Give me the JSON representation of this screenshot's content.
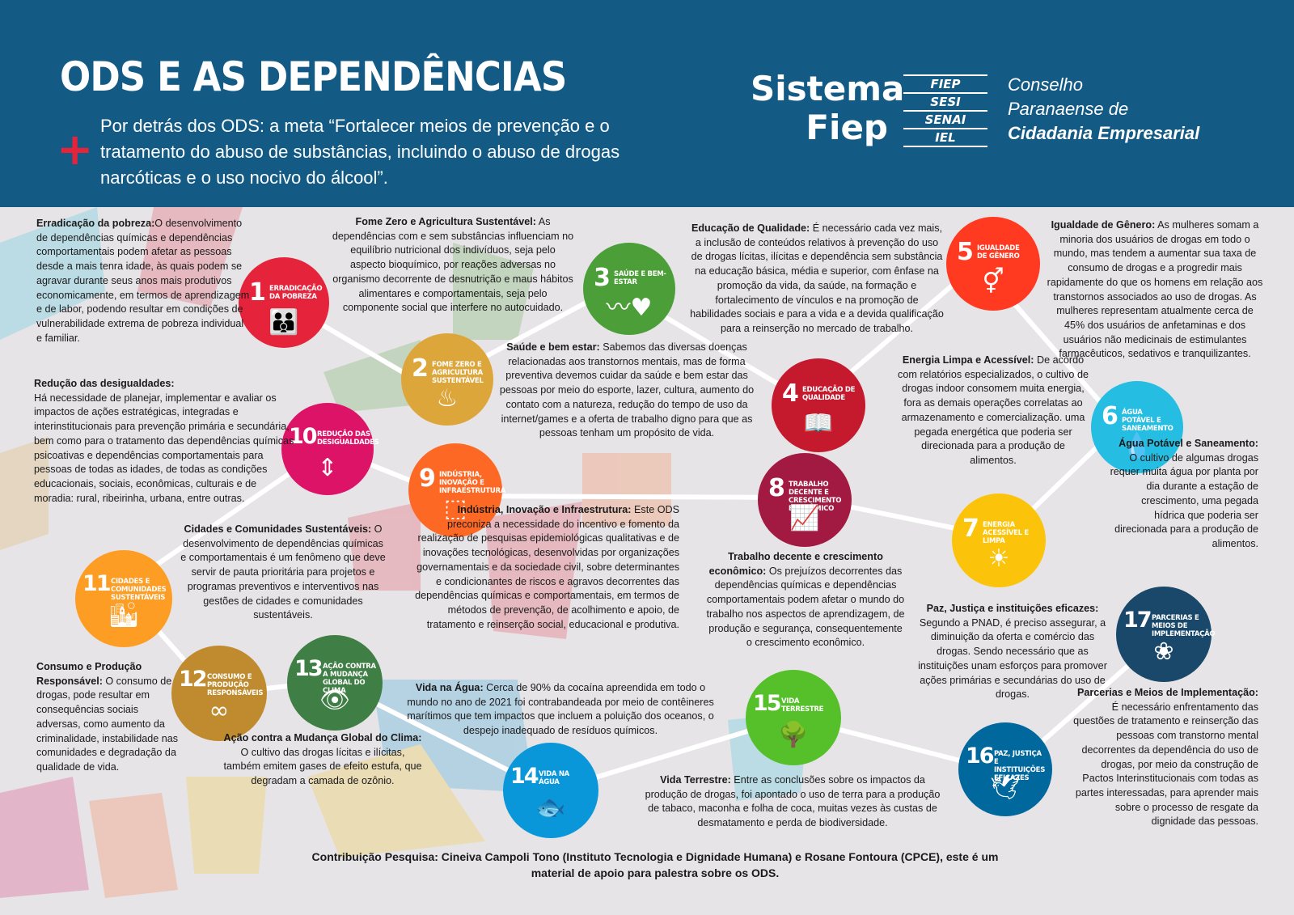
{
  "header": {
    "title": "ODS E AS DEPENDÊNCIAS",
    "subtitle": "Por detrás dos ODS: a meta  “Fortalecer meios de prevenção e o tratamento do abuso de substâncias, incluindo o abuso de drogas narcóticas e o uso nocivo do álcool”.",
    "logo": {
      "sistema": "Sistema",
      "fiep": "Fiep",
      "entities": [
        "FIEP",
        "SESI",
        "SENAI",
        "IEL"
      ],
      "conselho_1": "Conselho",
      "conselho_2": "Paranaense de",
      "conselho_3": "Cidadania Empresarial"
    }
  },
  "goals": [
    {
      "number": "1",
      "label": "Erradicação da pobreza",
      "color": "#e5243b",
      "icon": "people-icon"
    },
    {
      "number": "2",
      "label": "Fome zero e agricultura sustentável",
      "color": "#dda63a",
      "icon": "bowl-icon"
    },
    {
      "number": "3",
      "label": "Saúde e bem-estar",
      "color": "#4c9f38",
      "icon": "heartbeat-icon"
    },
    {
      "number": "4",
      "label": "Educação de qualidade",
      "color": "#c5192d",
      "icon": "book-icon"
    },
    {
      "number": "5",
      "label": "Igualdade de gênero",
      "color": "#ff3a21",
      "icon": "gender-icon"
    },
    {
      "number": "6",
      "label": "Água potável e saneamento",
      "color": "#26bde2",
      "icon": "water-icon"
    },
    {
      "number": "7",
      "label": "Energia acessível e limpa",
      "color": "#fcc30b",
      "icon": "sun-icon"
    },
    {
      "number": "8",
      "label": "Trabalho decente e crescimento econômico",
      "color": "#a21942",
      "icon": "growth-chart-icon"
    },
    {
      "number": "9",
      "label": "Indústria, inovação e infraestrutura",
      "color": "#fd6925",
      "icon": "cubes-icon"
    },
    {
      "number": "10",
      "label": "Redução das desigualdades",
      "color": "#dd1367",
      "icon": "equality-icon"
    },
    {
      "number": "11",
      "label": "Cidades e comunidades sustentáveis",
      "color": "#fd9d24",
      "icon": "city-icon"
    },
    {
      "number": "12",
      "label": "Consumo e produção responsáveis",
      "color": "#bf8b2e",
      "icon": "infinity-icon"
    },
    {
      "number": "13",
      "label": "Ação contra a mudança global do clima",
      "color": "#3f7e44",
      "icon": "eye-globe-icon"
    },
    {
      "number": "14",
      "label": "Vida na água",
      "color": "#0a97d9",
      "icon": "fish-icon"
    },
    {
      "number": "15",
      "label": "Vida terrestre",
      "color": "#56c02b",
      "icon": "tree-icon"
    },
    {
      "number": "16",
      "label": "Paz, justiça e instituições eficazes",
      "color": "#00689d",
      "icon": "dove-icon"
    },
    {
      "number": "17",
      "label": "Parcerias e meios de implementação",
      "color": "#19486a",
      "icon": "rings-icon"
    }
  ],
  "texts": {
    "ods1": {
      "title": "Erradicação da pobreza:",
      "body": "O desenvolvimento de dependências químicas e dependências comportamentais podem afetar as pessoas desde a mais tenra idade, às quais podem se agravar durante seus anos mais produtivos economicamente, em termos de aprendizagem e de labor, podendo resultar em condições de vulnerabilidade extrema de pobreza individual e familiar."
    },
    "ods2": {
      "title": "Fome Zero e Agricultura Sustentável:",
      "body": " As dependências com e sem substâncias influenciam no equilíbrio nutricional dos indivíduos, seja pelo aspecto bioquímico, por reações adversas no organismo decorrente de desnutrição e maus hábitos alimentares e comportamentais, seja pelo componente social que interfere no autocuidado."
    },
    "ods3": {
      "title": "Saúde e bem estar:",
      "body": " Sabemos das diversas doenças relacionadas aos transtornos mentais, mas de forma preventiva devemos cuidar da saúde e bem estar das pessoas por meio do esporte, lazer, cultura, aumento do contato com a natureza, redução do tempo de uso da internet/games e a oferta de trabalho digno para que as pessoas tenham um propósito de vida."
    },
    "ods4": {
      "title": "Educação de Qualidade:",
      "body": " É necessário cada vez mais, a inclusão de conteúdos relativos à prevenção do uso de drogas lícitas, ilícitas e dependência sem substância na educação básica, média e superior, com ênfase na promoção da vida, da saúde, na formação e fortalecimento de vínculos e na promoção de habilidades sociais e para a vida e a devida qualificação para a reinserção no mercado  de trabalho."
    },
    "ods5": {
      "title": "Igualdade de Gênero:",
      "body": " As mulheres somam a minoria dos usuários de drogas em todo o mundo, mas tendem a aumentar sua taxa de consumo de drogas e a progredir mais rapidamente do que os homens em relação aos transtornos associados ao uso de drogas. As mulheres representam atualmente cerca de 45% dos usuários de anfetaminas e dos usuários não medicinais de estimulantes farmacêuticos, sedativos e tranquilizantes."
    },
    "ods6": {
      "title": "Água Potável e Saneamento:",
      "body": "O cultivo de algumas drogas requer muita água por planta por dia durante a estação de crescimento, uma pegada hídrica que poderia ser direcionada para a produção de alimentos."
    },
    "ods7": {
      "title": "Energia Limpa e Acessível:",
      "body": "  De acordo com relatórios especializados, o cultivo de drogas indoor consomem muita energia, fora as demais operações correlatas ao armazenamento e comercialização. uma pegada energética que poderia ser direcionada para a produção de alimentos."
    },
    "ods8": {
      "title": "Trabalho decente e crescimento econômico:",
      "body": " Os prejuízos decorrentes das dependências químicas e dependências comportamentais podem afetar o mundo do trabalho nos aspectos de aprendizagem, de produção e segurança, consequentemente o crescimento econômico."
    },
    "ods9": {
      "title": "Indústria, Inovação e Infraestrutura:",
      "body": " Este ODS preconiza a necessidade do incentivo  e fomento da realização de pesquisas epidemiológicas qualitativas e de inovações tecnológicas, desenvolvidas por organizações governamentais e da sociedade civil, sobre determinantes e condicionantes de riscos e agravos decorrentes das dependências químicas e comportamentais, em termos de métodos de prevenção, de acolhimento e apoio, de tratamento e reinserção social, educacional e produtiva."
    },
    "ods10": {
      "title": "Redução das desigualdades:",
      "body": "Há necessidade de planejar, implementar e avaliar os impactos de ações estratégicas, integradas e interinstitucionais para prevenção primária e secundária, bem como para o tratamento das dependências químicas psicoativas e dependências comportamentais para pessoas de todas as idades, de todas as condições educacionais, sociais, econômicas, culturais e de moradia: rural, ribeirinha, urbana, entre outras."
    },
    "ods11": {
      "title": "Cidades e Comunidades Sustentáveis:",
      "body": " O desenvolvimento de dependências químicas e comportamentais é um fenômeno que deve servir de pauta prioritária para projetos e programas preventivos e interventivos nas gestões de cidades e comunidades sustentáveis."
    },
    "ods12": {
      "title": "Consumo e Produção Responsável:",
      "body": " O consumo de drogas, pode resultar em consequências sociais adversas, como aumento da criminalidade, instabilidade nas comunidades e degradação da qualidade de vida."
    },
    "ods13": {
      "title": "Ação contra a Mudança Global do Clima:",
      "body": " O cultivo das drogas lícitas e ilícitas, também emitem gases de efeito estufa, que degradam a camada de ozônio."
    },
    "ods14": {
      "title": "Vida na Água:",
      "body": " Cerca de 90% da cocaína apreendida em todo o mundo no ano de 2021 foi contrabandeada por meio de contêineres marítimos que tem impactos que incluem a poluição dos oceanos, o despejo inadequado de resíduos químicos."
    },
    "ods15": {
      "title": "Vida Terrestre:",
      "body": " Entre as conclusões sobre os impactos da produção de drogas, foi apontado o uso de terra para a produção de tabaco, maconha e folha de coca, muitas vezes às custas de desmatamento e perda de biodiversidade."
    },
    "ods16": {
      "title": "Paz, Justiça e instituições eficazes:",
      "body": " Segundo a PNAD, é preciso assegurar, a diminuição da oferta e comércio das drogas. Sendo necessário que as instituições unam esforços para promover ações primárias e secundárias do uso de drogas."
    },
    "ods17": {
      "title": "Parcerias e Meios de Implementação:",
      "body": " É necessário enfrentamento das questões de tratamento e reinserção das pessoas com transtorno mental decorrentes da dependência do uso de drogas, por meio da construção de Pactos Interinstitucionais com todas as partes interessadas, para aprender mais sobre o processo de resgate da dignidade das pessoas."
    }
  },
  "credits": "Contribuição Pesquisa: Cineiva Campoli Tono (Instituto Tecnologia e Dignidade Humana) e Rosane Fontoura (CPCE), este é um material de apoio para palestra sobre os ODS."
}
